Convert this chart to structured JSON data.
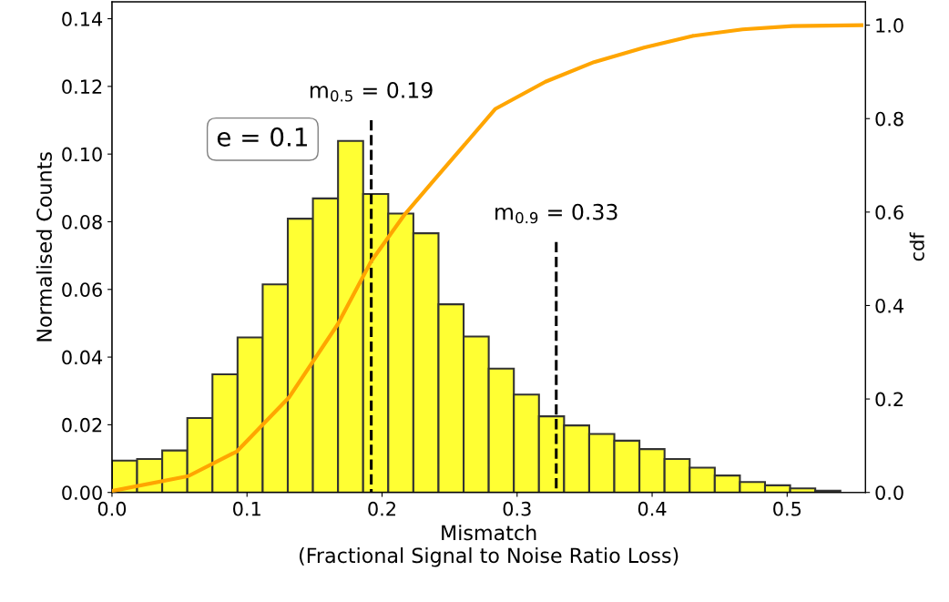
{
  "chart_data": {
    "type": "histogram",
    "xlabel": "Mismatch\n(Fractional Signal to Noise Ratio Loss)",
    "ylabel": "Normalised Counts",
    "y2label": "cdf",
    "bins": [
      0,
      0.0186,
      0.0372,
      0.0558,
      0.0744,
      0.093,
      0.1116,
      0.1302,
      0.1488,
      0.1674,
      0.186,
      0.2046,
      0.2232,
      0.2418,
      0.2604,
      0.279,
      0.2976,
      0.3162,
      0.3348,
      0.3534,
      0.372,
      0.3906,
      0.4092,
      0.4278,
      0.4464,
      0.465,
      0.4836,
      0.5022,
      0.5208,
      0.5394
    ],
    "values": [
      0.0094,
      0.0099,
      0.0124,
      0.022,
      0.0349,
      0.0458,
      0.0615,
      0.0809,
      0.0869,
      0.1039,
      0.0882,
      0.0824,
      0.0766,
      0.0556,
      0.0461,
      0.0366,
      0.0289,
      0.0225,
      0.0198,
      0.0173,
      0.0153,
      0.0128,
      0.0099,
      0.0073,
      0.005,
      0.0031,
      0.0021,
      0.0012,
      0.0005
    ],
    "color": "#ffff33",
    "series": [
      {
        "type": "line",
        "axis": "y2",
        "color": "#ffa500",
        "x": [
          0,
          0.0565,
          0.0926,
          0.131,
          0.167,
          0.192,
          0.216,
          0.239,
          0.284,
          0.321,
          0.357,
          0.394,
          0.43,
          0.467,
          0.504,
          0.555
        ],
        "values": [
          0.003,
          0.035,
          0.088,
          0.203,
          0.359,
          0.495,
          0.592,
          0.67,
          0.821,
          0.879,
          0.921,
          0.952,
          0.977,
          0.991,
          0.998,
          1.0
        ]
      },
      {
        "type": "line",
        "color": "#000000",
        "line_style": "dashed",
        "x": [
          0.192,
          0.192
        ],
        "values": [
          0,
          0.11
        ]
      },
      {
        "type": "line",
        "color": "#000000",
        "line_style": "dashed",
        "x": [
          0.329,
          0.329
        ],
        "values": [
          0,
          0.074
        ]
      }
    ],
    "annotations": [
      {
        "text": "m$_{0.5}$ = 0.19",
        "x": 0.192,
        "y": 0.11
      },
      {
        "text": "m$_{0.9}$ = 0.33",
        "x": 0.329,
        "y": 0.074
      },
      "e = 0.1"
    ],
    "xlim": [
      0,
      0.558
    ],
    "xticks": [
      {
        "value": 0,
        "label": "0.0"
      },
      0.1,
      0.2,
      0.3,
      0.4,
      0.5
    ],
    "ylim": [
      0,
      0.145
    ],
    "yticks": [
      {
        "value": 0,
        "label": "0.00"
      },
      {
        "value": 0.02,
        "label": "0.02"
      },
      {
        "value": 0.04,
        "label": "0.04"
      },
      {
        "value": 0.06,
        "label": "0.06"
      },
      {
        "value": 0.08,
        "label": "0.08"
      },
      {
        "value": 0.1,
        "label": "0.10"
      },
      {
        "value": 0.12,
        "label": "0.12"
      },
      {
        "value": 0.14,
        "label": "0.14"
      }
    ],
    "y2lim": [
      0,
      1.05
    ],
    "y2ticks": [
      {
        "value": 0,
        "label": "0.0"
      },
      0.2,
      0.4,
      0.6,
      0.8,
      {
        "value": 1,
        "label": "1.0"
      }
    ],
    "grid": false,
    "legend": false
  }
}
